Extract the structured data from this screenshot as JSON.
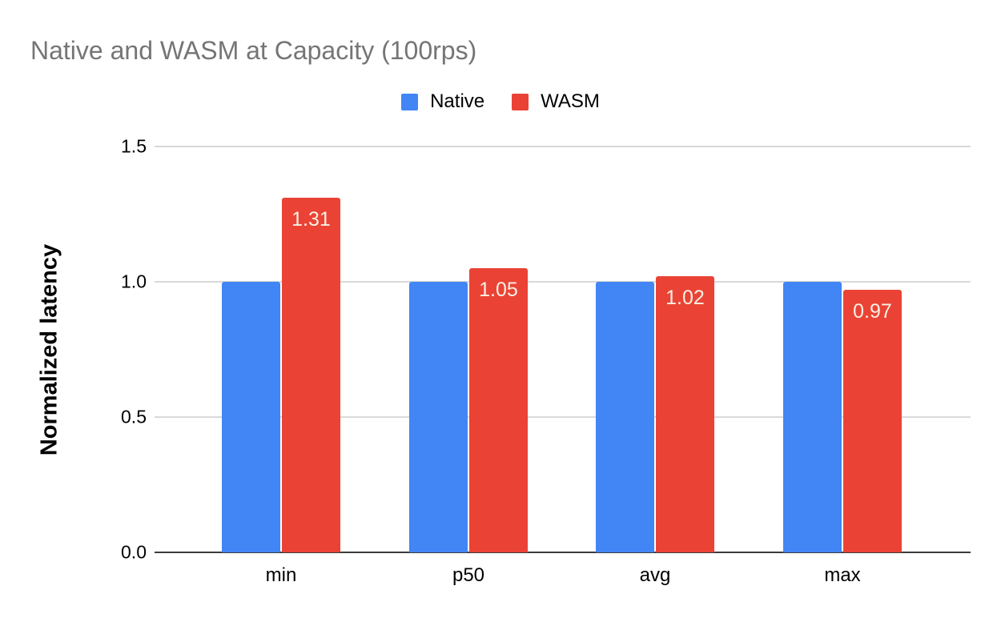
{
  "title": {
    "text": "Native and WASM at Capacity (100rps)",
    "color": "#757575"
  },
  "legend": {
    "position": "top",
    "items": [
      {
        "label": "Native",
        "color": "#4285F4",
        "swatch_icon": "square-swatch-icon"
      },
      {
        "label": "WASM",
        "color": "#EA4335",
        "swatch_icon": "square-swatch-icon"
      }
    ]
  },
  "chart_data": {
    "type": "bar",
    "title": "Native and WASM at Capacity (100rps)",
    "categories": [
      "min",
      "p50",
      "avg",
      "max"
    ],
    "series": [
      {
        "name": "Native",
        "color": "#4285F4",
        "values": [
          1.0,
          1.0,
          1.0,
          1.0
        ],
        "data_labels": [
          "",
          "",
          "",
          ""
        ]
      },
      {
        "name": "WASM",
        "color": "#EA4335",
        "values": [
          1.31,
          1.05,
          1.02,
          0.97
        ],
        "data_labels": [
          "1.31",
          "1.05",
          "1.02",
          "0.97"
        ],
        "data_label_color": "#f7f0e4"
      }
    ],
    "xlabel": "",
    "ylabel": "Normalized latency",
    "ylim": [
      0,
      1.5
    ],
    "yticks": [
      0.0,
      0.5,
      1.0,
      1.5
    ],
    "ytick_labels": [
      "0.0",
      "0.5",
      "1.0",
      "1.5"
    ],
    "grid": true,
    "gridline_color": "#d9d9d9",
    "baseline_color": "#3c3c3c",
    "legend_position": "top"
  }
}
